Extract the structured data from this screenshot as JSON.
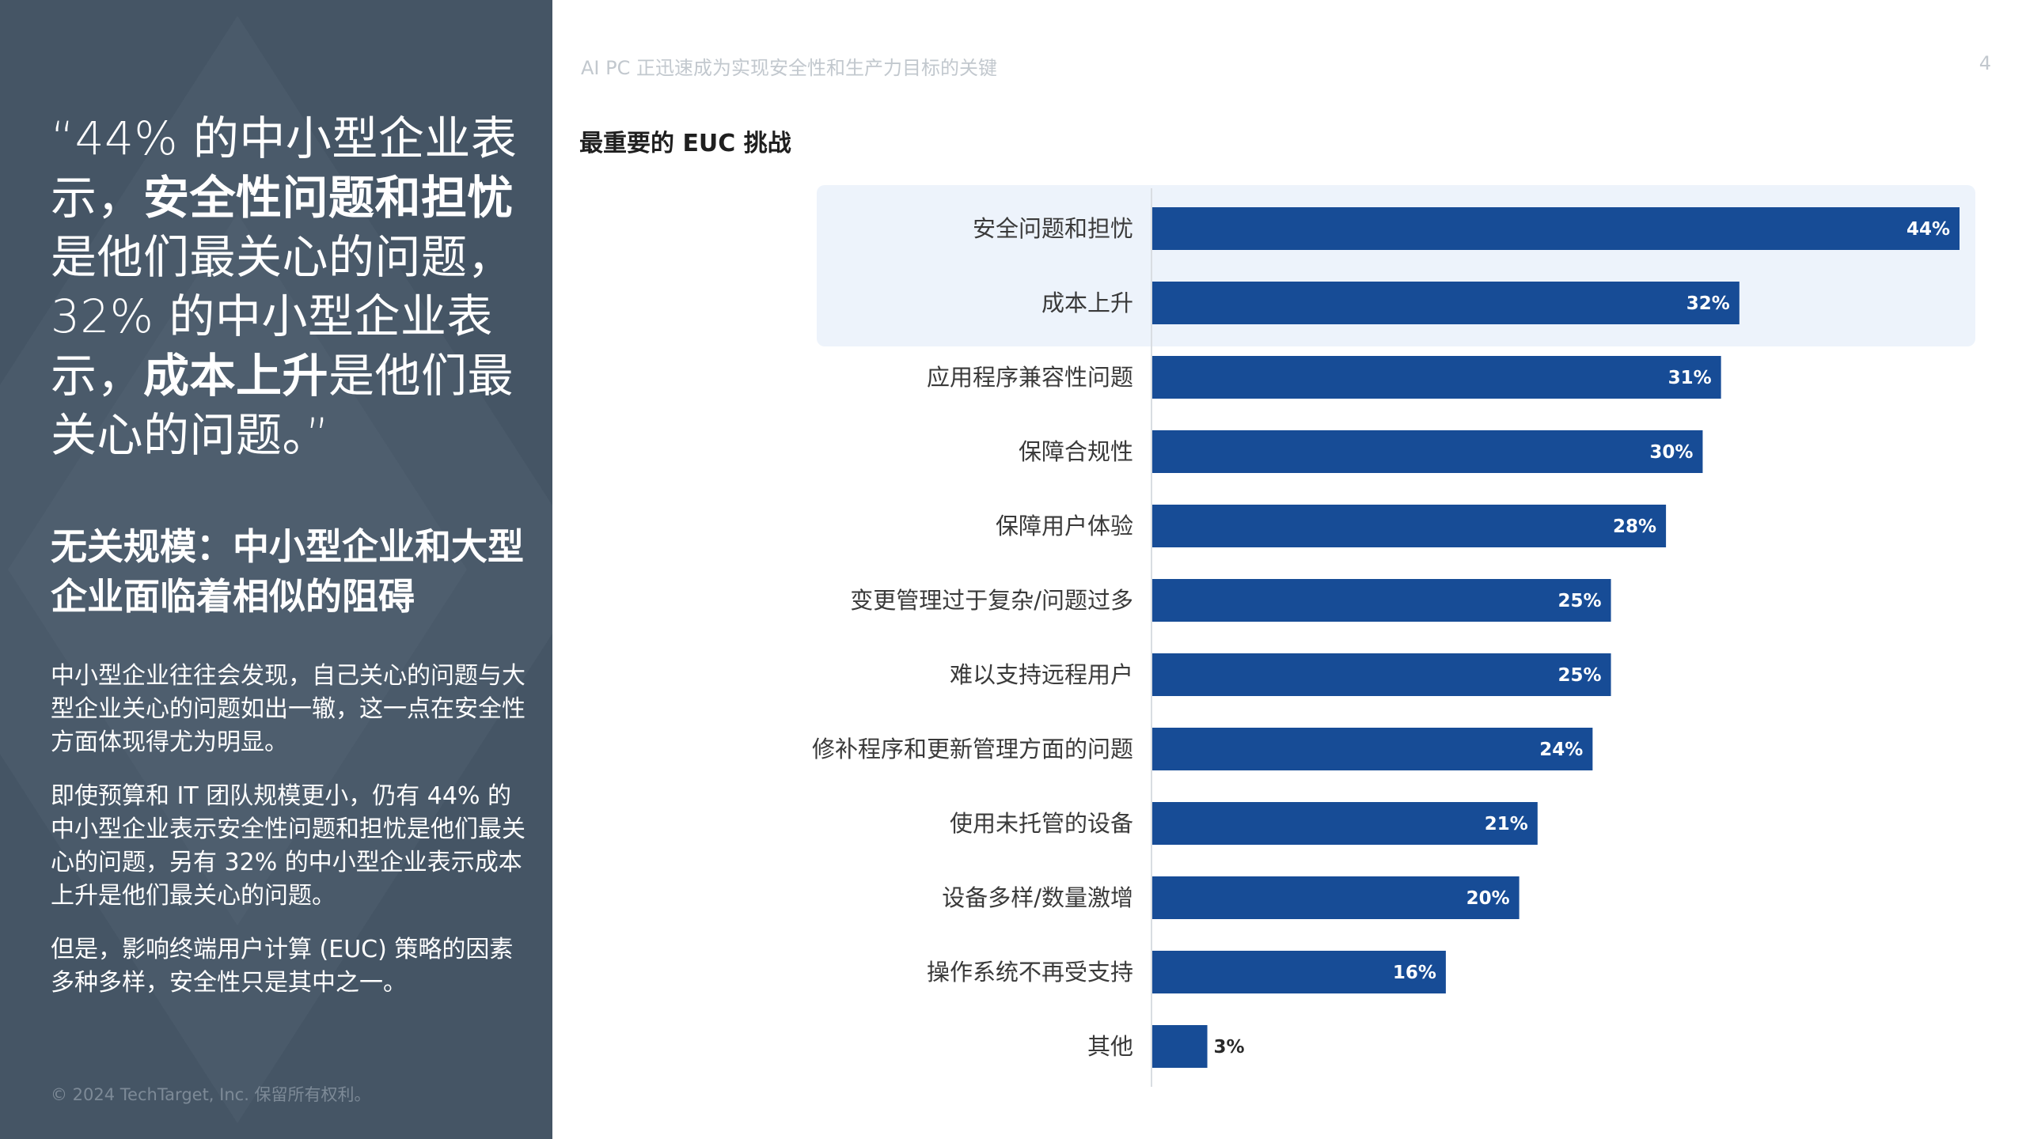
{
  "header": {
    "title": "AI PC 正迅速成为实现安全性和生产力目标的关键",
    "page_number": "4"
  },
  "left": {
    "quote": {
      "open": "“",
      "p1": "44% 的中小型企业表示，",
      "b1": "安全性问题和担忧",
      "p2": "是他们最关心的问题，32% 的中小型企业表示，",
      "b2": "成本上升",
      "p3": "是他们最关心的问题。",
      "close": "”"
    },
    "subheading": "无关规模：中小型企业和大型企业面临着相似的阻碍",
    "paragraphs": [
      "中小型企业往往会发现，自己关心的问题与大型企业关心的问题如出一辙，这一点在安全性方面体现得尤为明显。",
      "即使预算和 IT 团队规模更小，仍有 44% 的中小型企业表示安全性问题和担忧是他们最关心的问题，另有 32% 的中小型企业表示成本上升是他们最关心的问题。",
      "但是，影响终端用户计算 (EUC) 策略的因素多种多样，安全性只是其中之一。"
    ],
    "copyright": "© 2024 TechTarget, Inc. 保留所有权利。"
  },
  "colors": {
    "panel": "#455565",
    "bar": "#174c96",
    "highlight": "#edf3fb",
    "value_inside": "#ffffff",
    "value_outside": "#2a2a2a"
  },
  "chart_data": {
    "type": "bar",
    "orientation": "horizontal",
    "title": "最重要的 EUC 挑战",
    "categories": [
      "安全问题和担忧",
      "成本上升",
      "应用程序兼容性问题",
      "保障合规性",
      "保障用户体验",
      "变更管理过于复杂/问题过多",
      "难以支持远程用户",
      "修补程序和更新管理方面的问题",
      "使用未托管的设备",
      "设备多样/数量激增",
      "操作系统不再受支持",
      "其他"
    ],
    "values": [
      44,
      32,
      31,
      30,
      28,
      25,
      25,
      24,
      21,
      20,
      16,
      3
    ],
    "value_labels": [
      "44%",
      "32%",
      "31%",
      "30%",
      "28%",
      "25%",
      "25%",
      "24%",
      "21%",
      "20%",
      "16%",
      "3%"
    ],
    "highlighted_categories": [
      "安全问题和担忧",
      "成本上升"
    ],
    "xlim": [
      0,
      44
    ],
    "grid": false,
    "legend": "none"
  }
}
